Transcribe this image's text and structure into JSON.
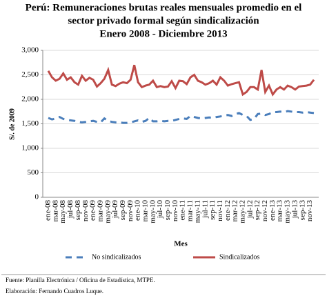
{
  "chart_data": {
    "type": "line",
    "title": [
      "Perú: Remuneraciones brutas reales mensuales promedio en el",
      "sector privado formal según sindicalización",
      "Enero 2008 - Diciembre 2013"
    ],
    "x_label": "Mes",
    "y_label": "S/. de 2009",
    "categories": [
      "ene-08",
      null,
      "mar-08",
      null,
      "may-08",
      null,
      "jul-08",
      null,
      "sep-08",
      null,
      "nov-08",
      null,
      "ene-09",
      null,
      "mar-09",
      null,
      "may-09",
      null,
      "jul-09",
      null,
      "sep-09",
      null,
      "nov-09",
      null,
      "ene-10",
      null,
      "mar-10",
      null,
      "may-10",
      null,
      "jul-10",
      null,
      "sep-10",
      null,
      "nov-10",
      null,
      "ene-11",
      null,
      "mar-11",
      null,
      "may-11",
      null,
      "jul-11",
      null,
      "sep-11",
      null,
      "nov-11",
      null,
      "ene-12",
      null,
      "mar-12",
      null,
      "may-12",
      null,
      "jul-12",
      null,
      "sep-12",
      null,
      "nov-12",
      null,
      "ene-13",
      null,
      "mar-13",
      null,
      "may-13",
      null,
      "jul-13",
      null,
      "sep-13",
      null,
      "nov-13",
      null
    ],
    "series": [
      {
        "name": "No sindicalizados",
        "color": "#4a7ebb",
        "dashed": true,
        "values": [
          1620,
          1590,
          1610,
          1640,
          1600,
          1580,
          1570,
          1560,
          1540,
          1530,
          1540,
          1550,
          1560,
          1540,
          1530,
          1610,
          1560,
          1540,
          1530,
          1530,
          1520,
          1520,
          1530,
          1550,
          1570,
          1540,
          1560,
          1620,
          1550,
          1550,
          1560,
          1550,
          1560,
          1560,
          1580,
          1600,
          1610,
          1600,
          1660,
          1640,
          1620,
          1610,
          1620,
          1630,
          1620,
          1640,
          1650,
          1670,
          1680,
          1660,
          1700,
          1720,
          1680,
          1660,
          1580,
          1600,
          1700,
          1710,
          1680,
          1700,
          1740,
          1740,
          1750,
          1740,
          1760,
          1750,
          1740,
          1740,
          1730,
          1740,
          1730,
          1720
        ]
      },
      {
        "name": "Sindicalizados",
        "color": "#be4b48",
        "dashed": false,
        "values": [
          2580,
          2450,
          2380,
          2420,
          2530,
          2400,
          2450,
          2350,
          2300,
          2480,
          2380,
          2440,
          2400,
          2260,
          2330,
          2420,
          2600,
          2300,
          2270,
          2320,
          2350,
          2330,
          2400,
          2700,
          2350,
          2250,
          2280,
          2300,
          2380,
          2250,
          2270,
          2250,
          2260,
          2370,
          2230,
          2380,
          2370,
          2310,
          2450,
          2500,
          2380,
          2350,
          2300,
          2330,
          2380,
          2300,
          2450,
          2380,
          2280,
          2310,
          2330,
          2350,
          2100,
          2150,
          2250,
          2250,
          2200,
          2600,
          2150,
          2280,
          2100,
          2200,
          2250,
          2200,
          2280,
          2250,
          2200,
          2260,
          2270,
          2280,
          2300,
          2400
        ]
      }
    ],
    "ylim": [
      0,
      3000
    ],
    "yticks": [
      0,
      500,
      {
        "value": 1000,
        "label": "1,000"
      },
      {
        "value": 1500,
        "label": "1,500"
      },
      {
        "value": 2000,
        "label": "2,000"
      },
      {
        "value": 2500,
        "label": "2,500"
      },
      {
        "value": 3000,
        "label": "3,000"
      }
    ],
    "grid": true,
    "legend": "bottom",
    "notes": [
      "Fuente:  Planilla Electrónica / Oficina de Estadística, MTPE.",
      "Elaboración: Fernando Cuadros Luque."
    ]
  }
}
